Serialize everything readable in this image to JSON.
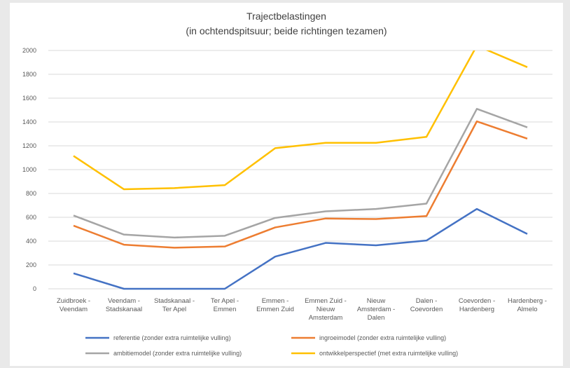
{
  "chart_data": {
    "type": "line",
    "title_lines": [
      "Trajectbelastingen",
      "(in ochtendspitsuur; beide richtingen tezamen)"
    ],
    "xlabel": "",
    "ylabel": "",
    "ylim": [
      0,
      2000
    ],
    "yticks": [
      "0",
      "200",
      "400",
      "600",
      "800",
      "1000",
      "1200",
      "1400",
      "1600",
      "1800",
      "2000"
    ],
    "grid": true,
    "legend_position": "bottom",
    "categories": [
      [
        "Zuidbroek -",
        "Veendam"
      ],
      [
        "Veendam -",
        "Stadskanaal"
      ],
      [
        "Stadskanaal -",
        "Ter Apel"
      ],
      [
        "Ter Apel -",
        "Emmen"
      ],
      [
        "Emmen -",
        "Emmen Zuid"
      ],
      [
        "Emmen Zuid -",
        "Nieuw",
        "Amsterdam"
      ],
      [
        "Nieuw",
        "Amsterdam -",
        "Dalen"
      ],
      [
        "Dalen -",
        "Coevorden"
      ],
      [
        "Coevorden -",
        "Hardenberg"
      ],
      [
        "Hardenberg -",
        "Almelo"
      ]
    ],
    "series": [
      {
        "name": "referentie (zonder extra ruimtelijke vulling)",
        "color": "#4472c4",
        "values": [
          130,
          0,
          0,
          0,
          270,
          385,
          365,
          405,
          670,
          460
        ]
      },
      {
        "name": "ingroeimodel (zonder extra ruimtelijke vulling)",
        "color": "#ed7d31",
        "values": [
          530,
          370,
          345,
          355,
          515,
          590,
          585,
          610,
          1405,
          1260
        ]
      },
      {
        "name": "ambitiemodel (zonder extra ruimtelijke vulling)",
        "color": "#a5a5a5",
        "values": [
          615,
          455,
          430,
          445,
          595,
          650,
          670,
          715,
          1510,
          1355
        ]
      },
      {
        "name": "ontwikkelperspectief (met extra ruimtelijke vulling)",
        "color": "#ffc000",
        "values": [
          1115,
          835,
          845,
          870,
          1180,
          1225,
          1225,
          1275,
          2040,
          1860
        ]
      }
    ]
  }
}
